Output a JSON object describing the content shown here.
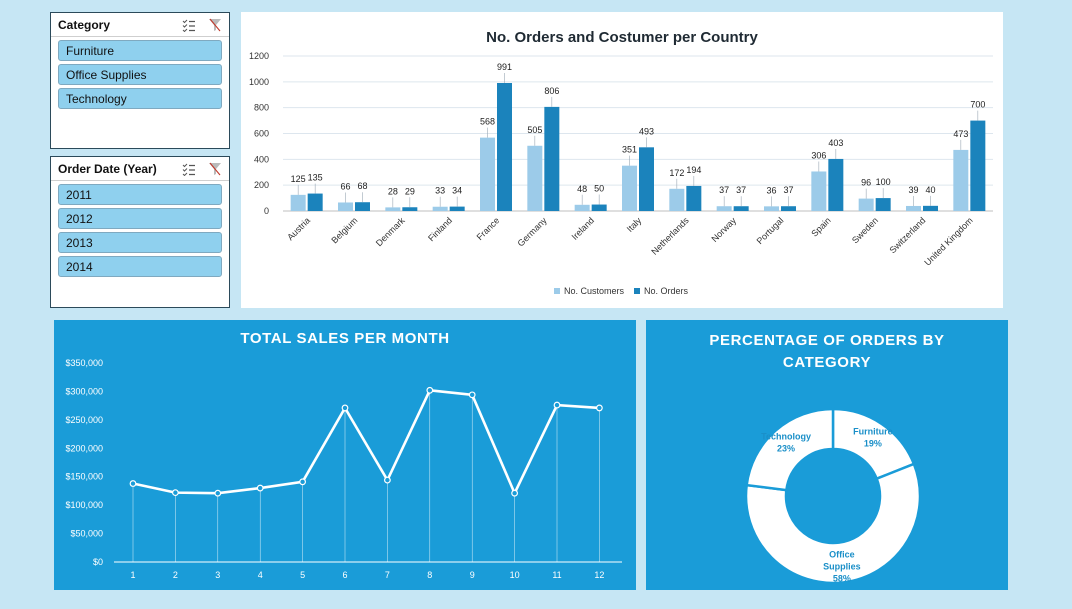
{
  "slicers": {
    "category": {
      "title": "Category",
      "items": [
        "Furniture",
        "Office Supplies",
        "Technology"
      ]
    },
    "order_date": {
      "title": "Order Date (Year)",
      "items": [
        "2011",
        "2012",
        "2013",
        "2014"
      ]
    }
  },
  "colors": {
    "customers": "#9ccbe9",
    "orders": "#1b83bc",
    "panel_blue": "#1a9cd8",
    "pie_white": "#ffffff"
  },
  "chart_data": [
    {
      "type": "bar",
      "title": "No. Orders and Costumer per Country",
      "categories": [
        "Austria",
        "Belgium",
        "Denmark",
        "Finland",
        "France",
        "Germany",
        "Ireland",
        "Italy",
        "Netherlands",
        "Norway",
        "Portugal",
        "Spain",
        "Sweden",
        "Switzerland",
        "United Kingdom"
      ],
      "series": [
        {
          "name": "No. Customers",
          "values": [
            125,
            66,
            28,
            33,
            568,
            505,
            48,
            351,
            172,
            37,
            36,
            306,
            96,
            39,
            473
          ]
        },
        {
          "name": "No. Orders",
          "values": [
            135,
            68,
            29,
            34,
            991,
            806,
            50,
            493,
            194,
            37,
            37,
            403,
            100,
            40,
            700
          ]
        }
      ],
      "yticks": [
        "0",
        "200",
        "400",
        "600",
        "800",
        "1000",
        "1200"
      ],
      "ylim": [
        0,
        1200
      ],
      "grid": true,
      "legend": "bottom"
    },
    {
      "type": "line",
      "title": "TOTAL SALES PER MONTH",
      "x": [
        "1",
        "2",
        "3",
        "4",
        "5",
        "6",
        "7",
        "8",
        "9",
        "10",
        "11",
        "12"
      ],
      "series": [
        {
          "values": [
            138000,
            122000,
            121000,
            130000,
            141000,
            271000,
            144000,
            302000,
            294000,
            121000,
            276000,
            271000
          ]
        }
      ],
      "yticks": [
        "$0",
        "$50,000",
        "$100,000",
        "$150,000",
        "$200,000",
        "$250,000",
        "$300,000",
        "$350,000"
      ],
      "ylim": [
        0,
        350000
      ]
    },
    {
      "type": "pie",
      "title": "PERCENTAGE OF ORDERS BY CATEGORY",
      "slices": [
        {
          "label": "Furniture",
          "pct_label": "19%",
          "value": 19
        },
        {
          "label": "Office Supplies",
          "pct_label": "58%",
          "value": 58
        },
        {
          "label": "Technology",
          "pct_label": "23%",
          "value": 23
        }
      ]
    }
  ]
}
